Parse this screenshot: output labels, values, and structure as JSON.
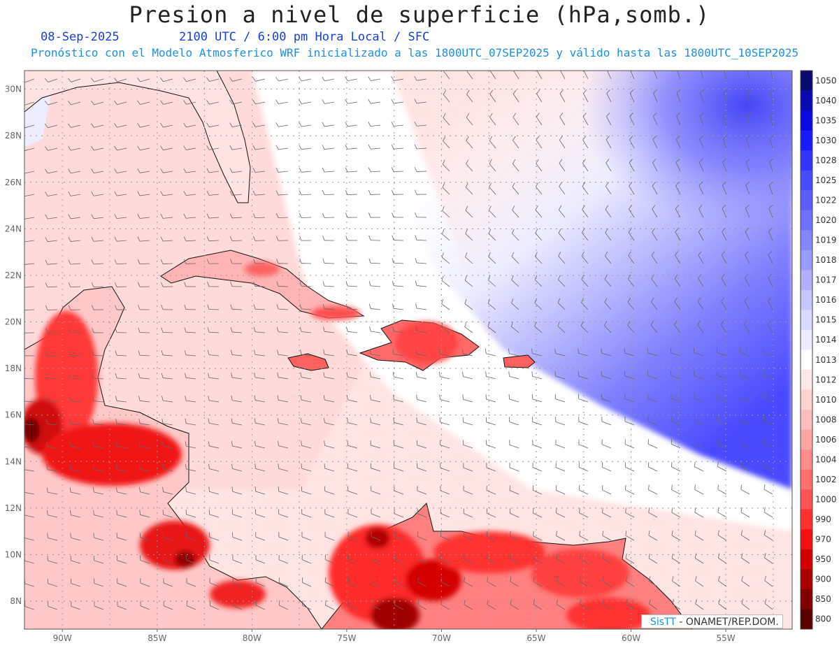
{
  "header": {
    "title": "Presion a nivel de superficie (hPa,somb.)",
    "date": "08-Sep-2025",
    "time_info": "2100 UTC / 6:00 pm Hora Local / SFC",
    "model_info": "Pronóstico con el Modelo Atmosferico WRF inicializado a las 1800UTC_07SEP2025 y válido hasta las  1800UTC_10SEP2025"
  },
  "map": {
    "lon_range": [
      -92,
      -51.5
    ],
    "lat_range": [
      6.8,
      30.8
    ],
    "lon_ticks": [
      {
        "value": -90,
        "label": "90W"
      },
      {
        "value": -85,
        "label": "85W"
      },
      {
        "value": -80,
        "label": "80W"
      },
      {
        "value": -75,
        "label": "75W"
      },
      {
        "value": -70,
        "label": "70W"
      },
      {
        "value": -65,
        "label": "65W"
      },
      {
        "value": -60,
        "label": "60W"
      },
      {
        "value": -55,
        "label": "55W"
      }
    ],
    "lat_ticks": [
      {
        "value": 30,
        "label": "30N"
      },
      {
        "value": 28,
        "label": "28N"
      },
      {
        "value": 26,
        "label": "26N"
      },
      {
        "value": 24,
        "label": "24N"
      },
      {
        "value": 22,
        "label": "22N"
      },
      {
        "value": 20,
        "label": "20N"
      },
      {
        "value": 18,
        "label": "18N"
      },
      {
        "value": 16,
        "label": "16N"
      },
      {
        "value": 14,
        "label": "14N"
      },
      {
        "value": 12,
        "label": "12N"
      },
      {
        "value": 10,
        "label": "10N"
      },
      {
        "value": 8,
        "label": "8N"
      }
    ]
  },
  "colorbar": {
    "levels": [
      "1050",
      "1040",
      "1035",
      "1030",
      "1028",
      "1025",
      "1022",
      "1020",
      "1019",
      "1018",
      "1017",
      "1016",
      "1015",
      "1014",
      "1013",
      "1012",
      "1010",
      "1008",
      "1006",
      "1004",
      "1002",
      "1000",
      "990",
      "970",
      "950",
      "900",
      "850",
      "800"
    ],
    "colors": [
      "#0a0a6e",
      "#0a0ab0",
      "#0a0ae0",
      "#1a1aff",
      "#3333ff",
      "#4a4aff",
      "#5c5cff",
      "#7070ff",
      "#8585ff",
      "#9a9aff",
      "#b0b0ff",
      "#c5c5ff",
      "#dadaff",
      "#ededff",
      "#ffffff",
      "#ffe8e8",
      "#ffd2d2",
      "#ffbcbc",
      "#ffa4a4",
      "#ff8c8c",
      "#ff7070",
      "#ff5252",
      "#ff3030",
      "#f21010",
      "#d00000",
      "#a80000",
      "#800000",
      "#5a0000"
    ]
  },
  "credit": {
    "brand": "SisTT",
    "text": " - ONAMET/REP.DOM."
  }
}
